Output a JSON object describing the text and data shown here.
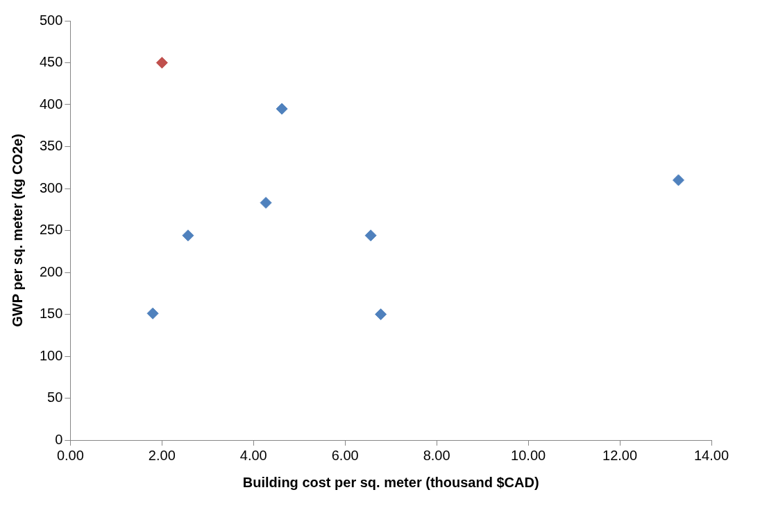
{
  "chart_data": {
    "type": "scatter",
    "xlabel": "Building cost per sq. meter (thousand $CAD)",
    "ylabel": "GWP per sq. meter (kg CO2e)",
    "x": [
      2.0,
      4.62,
      13.28,
      4.27,
      2.57,
      6.56,
      1.8,
      6.78
    ],
    "values": [
      450,
      395,
      310,
      283,
      244,
      244,
      151,
      150
    ],
    "colors": [
      "#c0504d",
      "#4f81bd",
      "#4f81bd",
      "#4f81bd",
      "#4f81bd",
      "#4f81bd",
      "#4f81bd",
      "#4f81bd"
    ],
    "marker": "diamond",
    "grid": false,
    "legend": false,
    "xlim": [
      0,
      14
    ],
    "xticks": [
      {
        "value": 0,
        "label": "0.00"
      },
      {
        "value": 2,
        "label": "2.00"
      },
      {
        "value": 4,
        "label": "4.00"
      },
      {
        "value": 6,
        "label": "6.00"
      },
      {
        "value": 8,
        "label": "8.00"
      },
      {
        "value": 10,
        "label": "10.00"
      },
      {
        "value": 12,
        "label": "12.00"
      },
      {
        "value": 14,
        "label": "14.00"
      }
    ],
    "ylim": [
      0,
      500
    ],
    "yticks": [
      0,
      50,
      100,
      150,
      200,
      250,
      300,
      350,
      400,
      450,
      500
    ]
  }
}
